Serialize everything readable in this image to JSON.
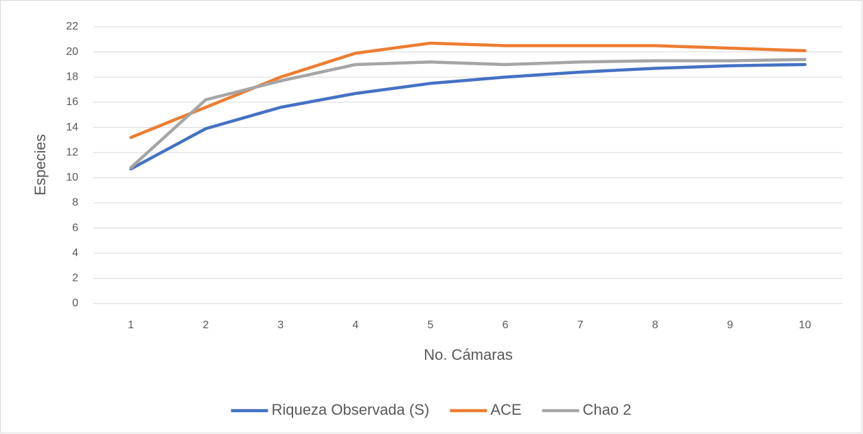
{
  "chart_data": {
    "type": "line",
    "x_label": "No. Cámaras",
    "y_label": "Especies",
    "categories": [
      "1",
      "2",
      "3",
      "4",
      "5",
      "6",
      "7",
      "8",
      "9",
      "10"
    ],
    "series": [
      {
        "name": "Riqueza Observada (S)",
        "color": "#4472c4",
        "values": [
          10.7,
          13.9,
          15.6,
          16.7,
          17.5,
          18.0,
          18.4,
          18.7,
          18.9,
          19.0
        ]
      },
      {
        "name": "ACE",
        "color": "#ed7d31",
        "values": [
          13.2,
          15.6,
          18.0,
          19.9,
          20.7,
          20.5,
          20.5,
          20.5,
          20.3,
          20.1
        ]
      },
      {
        "name": "Chao 2",
        "color": "#a5a5a5",
        "values": [
          10.8,
          16.2,
          17.7,
          19.0,
          19.2,
          19.0,
          19.2,
          19.3,
          19.3,
          19.4
        ]
      }
    ],
    "ylim": [
      0,
      22
    ],
    "yticks": [
      0,
      2,
      4,
      6,
      8,
      10,
      12,
      14,
      16,
      18,
      20,
      22
    ],
    "grid": true,
    "legend": "bottom"
  }
}
